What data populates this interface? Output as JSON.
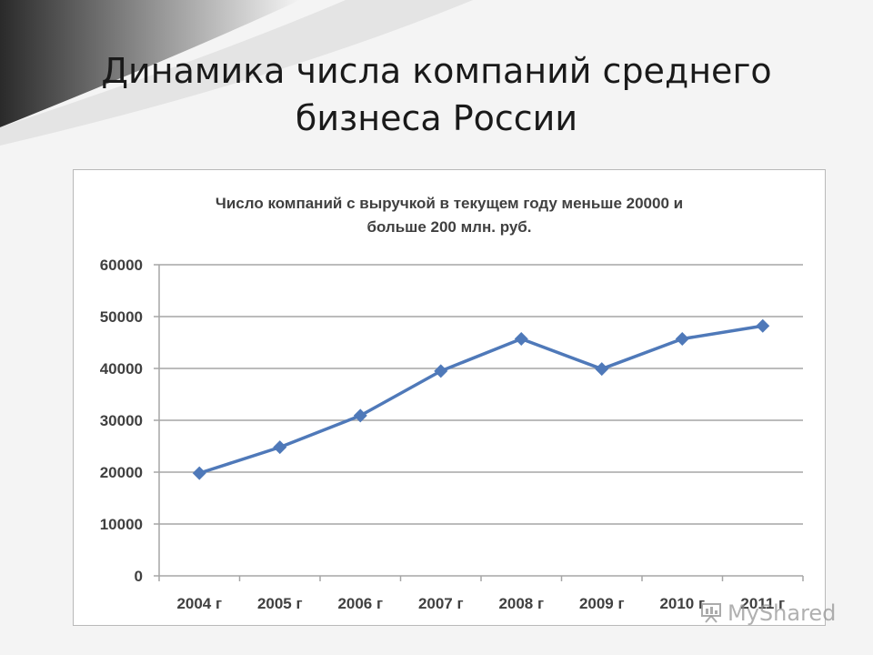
{
  "slide": {
    "title": "Динамика числа компаний среднего бизнеса России"
  },
  "watermark": {
    "text": "MyShared"
  },
  "colors": {
    "series_line": "#4f79b9",
    "gridline": "#a6a6a6",
    "axis_text": "#404040"
  },
  "chart_data": {
    "type": "line",
    "title": "Число компаний с выручкой в текущем году меньше 20000 и больше 200 млн. руб.",
    "categories": [
      "2004 г",
      "2005 г",
      "2006 г",
      "2007 г",
      "2008 г",
      "2009 г",
      "2010 г",
      "2011 г"
    ],
    "series": [
      {
        "values": [
          19800,
          24800,
          30900,
          39500,
          45700,
          39900,
          45700,
          48200
        ]
      }
    ],
    "ylim": [
      0,
      60000
    ],
    "yticks": [
      "0",
      "10000",
      "20000",
      "30000",
      "40000",
      "50000",
      "60000"
    ],
    "grid": true,
    "legend": "none",
    "marker": "diamond"
  }
}
